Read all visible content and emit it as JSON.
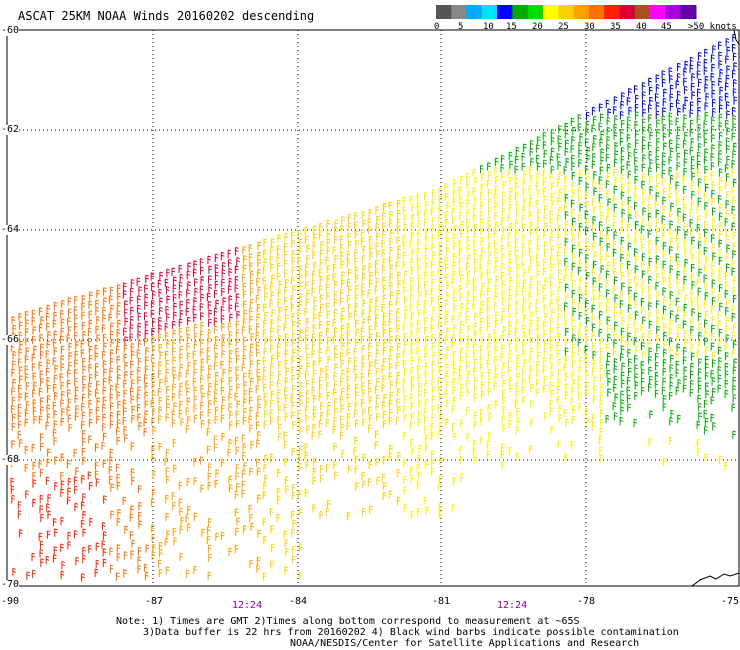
{
  "title": "ASCAT 25KM NOAA Winds 20160202 descending",
  "legend": {
    "colors": [
      "#555555",
      "#888888",
      "#00aaff",
      "#00e0ff",
      "#0000ff",
      "#00aa00",
      "#00dd00",
      "#ffff00",
      "#ffd000",
      "#ffa000",
      "#ff7000",
      "#ff2000",
      "#dd0033",
      "#aa5020",
      "#ff00ff",
      "#aa00dd",
      "#6600aa"
    ],
    "labels": [
      "0",
      "5",
      "10",
      "15",
      "20",
      "25",
      "30",
      "35",
      "40",
      "45",
      ">50 knots"
    ]
  },
  "axes": {
    "lat_labels": [
      "-60",
      "-62",
      "-64",
      "-66",
      "-68",
      "-70"
    ],
    "lon_labels": [
      "-90",
      "-87",
      "-84",
      "-81",
      "-78",
      "-75"
    ],
    "time_labels": [
      "12:24",
      "12:24"
    ]
  },
  "notes": {
    "line1": "Note: 1) Times are GMT 2)Times along bottom correspond to measurement at ~65S",
    "line2": "3)Data buffer is 22 hrs from 20160202 4) Black wind barbs indicate possible contamination",
    "line3": "NOAA/NESDIS/Center for Satellite Applications and Research"
  }
}
